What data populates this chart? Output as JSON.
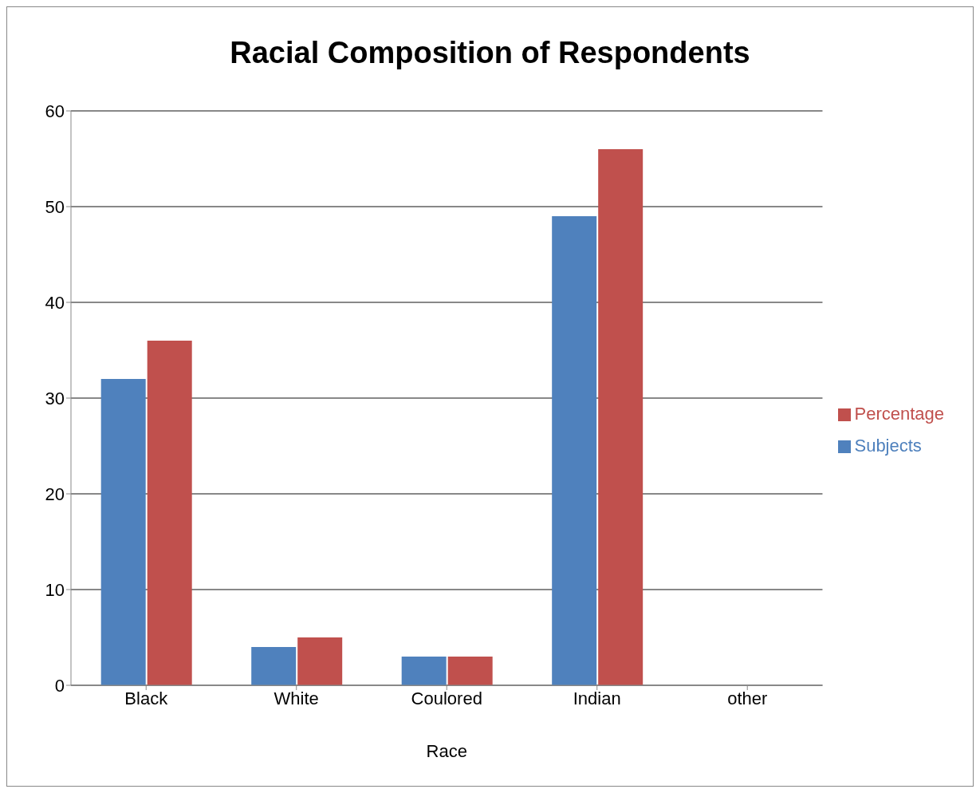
{
  "chart_data": {
    "type": "bar",
    "title": "Racial Composition of Respondents",
    "xlabel": "Race",
    "categories": [
      "Black",
      "White",
      "Coulored",
      "Indian",
      "other"
    ],
    "series": [
      {
        "name": "Subjects",
        "color": "#4f81bd",
        "values": [
          32,
          4,
          3,
          49,
          0
        ]
      },
      {
        "name": "Percentage",
        "color": "#c0504d",
        "values": [
          36,
          5,
          3,
          56,
          0
        ]
      }
    ],
    "ylim": [
      0,
      60
    ],
    "yticks": [
      0,
      10,
      20,
      30,
      40,
      50,
      60
    ],
    "grid": "y",
    "legend": "right"
  }
}
